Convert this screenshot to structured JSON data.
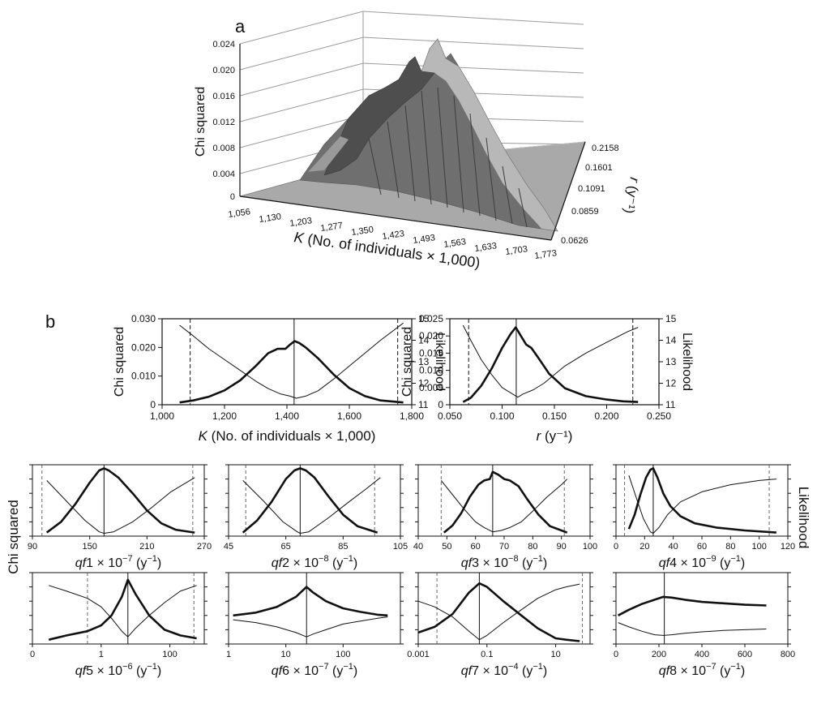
{
  "panel_a": {
    "label": "a",
    "zlabel": "Chi squared",
    "xlabel": "K (No. of individuals × 1,000)",
    "xlabel_italic": "K",
    "xlabel_rest": " (No. of individuals × 1,000)",
    "ylabel": "r (y⁻¹)",
    "ylabel_italic": "r",
    "ylabel_rest": " (y⁻¹)",
    "z_ticks": [
      "0.024",
      "0.020",
      "0.016",
      "0.012",
      "0.008",
      "0.004",
      "0"
    ],
    "x_ticks": [
      "1,056",
      "1,130",
      "1,203",
      "1,277",
      "1,350",
      "1,423",
      "1,493",
      "1,563",
      "1,633",
      "1,703",
      "1,773"
    ],
    "y_ticks": [
      "0.2158",
      "0.1601",
      "0.1091",
      "0.0859",
      "0.0626"
    ]
  },
  "panel_b": {
    "label": "b",
    "left_axis_label": "Chi squared",
    "right_axis_label": "Likelihood"
  },
  "chart_data": [
    {
      "id": "K",
      "type": "line",
      "xlabel_italic": "K",
      "xlabel_rest": " (No. of individuals × 1,000)",
      "xlabel": "K (No. of individuals × 1,000)",
      "ylabel": "Chi squared",
      "y2label": "Likelihood",
      "xlim": [
        1000,
        1800
      ],
      "ylim": [
        0,
        0.03
      ],
      "y2lim": [
        11,
        15
      ],
      "xticks": [
        "1,000",
        "1,200",
        "1,400",
        "1,600",
        "1,800"
      ],
      "xtick_values": [
        1000,
        1200,
        1400,
        1600,
        1800
      ],
      "yticks": [
        "0",
        "0.010",
        "0.020",
        "0.030"
      ],
      "ytick_values": [
        0,
        0.01,
        0.02,
        0.03
      ],
      "y2ticks": [
        "11",
        "12",
        "13",
        "14",
        "15"
      ],
      "y2tick_values": [
        11,
        12,
        13,
        14,
        15
      ],
      "series": [
        {
          "name": "Chi squared",
          "axis": "left",
          "x": [
            1056,
            1100,
            1150,
            1200,
            1250,
            1300,
            1340,
            1370,
            1395,
            1410,
            1425,
            1440,
            1460,
            1500,
            1550,
            1600,
            1650,
            1700,
            1773
          ],
          "y": [
            0.0008,
            0.0015,
            0.0028,
            0.005,
            0.0085,
            0.0135,
            0.018,
            0.0195,
            0.0195,
            0.021,
            0.0222,
            0.0215,
            0.02,
            0.0162,
            0.0105,
            0.0058,
            0.003,
            0.0015,
            0.0008
          ]
        },
        {
          "name": "Likelihood",
          "axis": "right",
          "x": [
            1056,
            1100,
            1150,
            1200,
            1250,
            1300,
            1340,
            1380,
            1410,
            1430,
            1460,
            1500,
            1550,
            1600,
            1650,
            1700,
            1773
          ],
          "y": [
            14.7,
            14.2,
            13.6,
            13.1,
            12.6,
            12.1,
            11.75,
            11.5,
            11.4,
            11.3,
            11.4,
            11.65,
            12.2,
            12.8,
            13.4,
            14.0,
            14.8
          ]
        }
      ],
      "lower_ci": 1090,
      "upper_ci": 1755,
      "best": 1423
    },
    {
      "id": "r",
      "type": "line",
      "xlabel_italic": "r",
      "xlabel_rest": " (y⁻¹)",
      "xlabel": "r (y⁻¹)",
      "ylabel": "Chi squared",
      "y2label": "Likelihood",
      "xlim": [
        0.05,
        0.25
      ],
      "ylim": [
        0,
        0.025
      ],
      "y2lim": [
        11,
        15
      ],
      "xticks": [
        "0.050",
        "0.100",
        "0.150",
        "0.200",
        "0.250"
      ],
      "xtick_values": [
        0.05,
        0.1,
        0.15,
        0.2,
        0.25
      ],
      "yticks": [
        "0",
        "0.005",
        "0.010",
        "0.015",
        "0.020",
        "0.025"
      ],
      "ytick_values": [
        0,
        0.005,
        0.01,
        0.015,
        0.02,
        0.025
      ],
      "y2ticks": [
        "11",
        "12",
        "13",
        "14",
        "15"
      ],
      "y2tick_values": [
        11,
        12,
        13,
        14,
        15
      ],
      "series": [
        {
          "name": "Chi squared",
          "axis": "left",
          "x": [
            0.0626,
            0.07,
            0.08,
            0.09,
            0.1,
            0.108,
            0.113,
            0.118,
            0.123,
            0.128,
            0.135,
            0.145,
            0.16,
            0.18,
            0.2,
            0.2158,
            0.23
          ],
          "y": [
            0.0008,
            0.002,
            0.0055,
            0.0105,
            0.0165,
            0.0205,
            0.0225,
            0.02,
            0.0175,
            0.0165,
            0.0135,
            0.009,
            0.0048,
            0.0025,
            0.0015,
            0.001,
            0.0008
          ]
        },
        {
          "name": "Likelihood",
          "axis": "right",
          "x": [
            0.0626,
            0.07,
            0.08,
            0.09,
            0.1,
            0.11,
            0.115,
            0.12,
            0.13,
            0.14,
            0.16,
            0.18,
            0.2,
            0.22,
            0.23
          ],
          "y": [
            14.7,
            14.0,
            13.1,
            12.4,
            11.8,
            11.5,
            11.35,
            11.5,
            11.7,
            12.0,
            12.8,
            13.4,
            13.9,
            14.4,
            14.6
          ]
        }
      ],
      "lower_ci": 0.068,
      "upper_ci": 0.225,
      "best": 0.1135
    },
    {
      "id": "qf1",
      "type": "line",
      "xscale": "linear",
      "xlabel_italic": "qf",
      "xlabel_num": "1",
      "xlabel_mult": " × 10",
      "xlabel_exp": "−7",
      "xlabel_unit": " (y",
      "xlabel_unit_exp": "−1",
      "xlabel_close": ")",
      "xlabel": "qf1 × 10⁻⁷ (y⁻¹)",
      "xlim": [
        90,
        270
      ],
      "xticks": [
        "90",
        "150",
        "210",
        "270"
      ],
      "xtick_values": [
        90,
        150,
        210,
        270
      ],
      "series": [
        {
          "name": "Chi squared",
          "x": [
            105,
            120,
            135,
            150,
            160,
            165,
            170,
            180,
            195,
            210,
            225,
            240,
            260
          ],
          "y": [
            0.05,
            0.2,
            0.45,
            0.75,
            0.92,
            0.95,
            0.92,
            0.82,
            0.6,
            0.36,
            0.18,
            0.09,
            0.05
          ]
        },
        {
          "name": "Likelihood",
          "x": [
            105,
            125,
            145,
            160,
            165,
            175,
            195,
            215,
            235,
            260
          ],
          "y": [
            0.78,
            0.5,
            0.22,
            0.06,
            0.04,
            0.06,
            0.2,
            0.4,
            0.62,
            0.82
          ]
        }
      ],
      "lower_ci": 100,
      "upper_ci": 258,
      "best": 165
    },
    {
      "id": "qf2",
      "type": "line",
      "xscale": "linear",
      "xlabel_italic": "qf",
      "xlabel_num": "2",
      "xlabel_mult": " × 10",
      "xlabel_exp": "−8",
      "xlabel_unit": " (y",
      "xlabel_unit_exp": "−1",
      "xlabel_close": ")",
      "xlabel": "qf2 × 10⁻⁸ (y⁻¹)",
      "xlim": [
        45,
        105
      ],
      "xticks": [
        "45",
        "65",
        "85",
        "105"
      ],
      "xtick_values": [
        45,
        65,
        85,
        105
      ],
      "series": [
        {
          "name": "Chi squared",
          "x": [
            50,
            55,
            60,
            65,
            68,
            70,
            72,
            75,
            80,
            85,
            90,
            97
          ],
          "y": [
            0.05,
            0.22,
            0.48,
            0.8,
            0.92,
            0.95,
            0.92,
            0.82,
            0.55,
            0.3,
            0.14,
            0.05
          ]
        },
        {
          "name": "Likelihood",
          "x": [
            50,
            57,
            64,
            69,
            70,
            73,
            80,
            87,
            93,
            98
          ],
          "y": [
            0.78,
            0.5,
            0.2,
            0.06,
            0.04,
            0.06,
            0.26,
            0.48,
            0.66,
            0.82
          ]
        }
      ],
      "lower_ci": 51,
      "upper_ci": 96,
      "best": 70
    },
    {
      "id": "qf3",
      "type": "line",
      "xscale": "linear",
      "xlabel_italic": "qf",
      "xlabel_num": "3",
      "xlabel_mult": " × 10",
      "xlabel_exp": "−8",
      "xlabel_unit": " (y",
      "xlabel_unit_exp": "−1",
      "xlabel_close": ")",
      "xlabel": "qf3 × 10⁻⁸ (y⁻¹)",
      "xlim": [
        40,
        100
      ],
      "xticks": [
        "40",
        "50",
        "60",
        "70",
        "80",
        "90",
        "100"
      ],
      "xtick_values": [
        40,
        50,
        60,
        70,
        80,
        90,
        100
      ],
      "series": [
        {
          "name": "Chi squared",
          "x": [
            49,
            52,
            55,
            58,
            61,
            63,
            65,
            66,
            68,
            70,
            72,
            75,
            78,
            82,
            86,
            92
          ],
          "y": [
            0.05,
            0.15,
            0.32,
            0.55,
            0.72,
            0.78,
            0.8,
            0.9,
            0.86,
            0.8,
            0.78,
            0.7,
            0.52,
            0.3,
            0.14,
            0.05
          ]
        },
        {
          "name": "Likelihood",
          "x": [
            48,
            52,
            56,
            60,
            63,
            66,
            69,
            72,
            76,
            80,
            85,
            90,
            92
          ],
          "y": [
            0.78,
            0.58,
            0.38,
            0.2,
            0.12,
            0.06,
            0.08,
            0.12,
            0.2,
            0.35,
            0.55,
            0.72,
            0.8
          ]
        }
      ],
      "lower_ci": 48,
      "upper_ci": 91,
      "best": 66
    },
    {
      "id": "qf4",
      "type": "line",
      "xscale": "linear",
      "xlabel_italic": "qf",
      "xlabel_num": "4",
      "xlabel_mult": " × 10",
      "xlabel_exp": "−9",
      "xlabel_unit": " (y",
      "xlabel_unit_exp": "−1",
      "xlabel_close": ")",
      "xlabel": "qf4 × 10⁻⁹ (y⁻¹)",
      "xlim": [
        0,
        120
      ],
      "xticks": [
        "0",
        "20",
        "40",
        "60",
        "80",
        "100",
        "120"
      ],
      "xtick_values": [
        0,
        20,
        40,
        60,
        80,
        100,
        120
      ],
      "series": [
        {
          "name": "Chi squared",
          "x": [
            9,
            13,
            17,
            21,
            24,
            26,
            29,
            33,
            38,
            45,
            55,
            70,
            90,
            112
          ],
          "y": [
            0.1,
            0.3,
            0.58,
            0.82,
            0.93,
            0.95,
            0.82,
            0.6,
            0.42,
            0.28,
            0.18,
            0.12,
            0.08,
            0.05
          ]
        },
        {
          "name": "Likelihood",
          "x": [
            9,
            14,
            19,
            24,
            26,
            30,
            36,
            45,
            60,
            80,
            100,
            112
          ],
          "y": [
            0.85,
            0.55,
            0.25,
            0.06,
            0.04,
            0.12,
            0.3,
            0.48,
            0.62,
            0.72,
            0.78,
            0.8
          ]
        }
      ],
      "lower_ci": 6,
      "upper_ci": 107,
      "best": 26
    },
    {
      "id": "qf5",
      "type": "line",
      "xscale": "log",
      "xlabel_italic": "qf",
      "xlabel_num": "5",
      "xlabel_mult": " × 10",
      "xlabel_exp": "−6",
      "xlabel_unit": " (y",
      "xlabel_unit_exp": "−1",
      "xlabel_close": ")",
      "xlabel": "qf5 × 10⁻⁶ (y⁻¹)",
      "xlim": [
        0.01,
        1000
      ],
      "xticks": [
        "0",
        "1",
        "100"
      ],
      "xtick_values": [
        0.01,
        1,
        100
      ],
      "series": [
        {
          "name": "Chi squared",
          "x": [
            0.03,
            0.1,
            0.4,
            1,
            2,
            4,
            6,
            10,
            25,
            70,
            200,
            600
          ],
          "y": [
            0.06,
            0.12,
            0.18,
            0.26,
            0.4,
            0.66,
            0.9,
            0.7,
            0.4,
            0.2,
            0.12,
            0.08
          ]
        },
        {
          "name": "Likelihood",
          "x": [
            0.03,
            0.1,
            0.4,
            1,
            2,
            4,
            6,
            10,
            25,
            70,
            200,
            600
          ],
          "y": [
            0.82,
            0.74,
            0.64,
            0.52,
            0.36,
            0.18,
            0.1,
            0.22,
            0.4,
            0.58,
            0.74,
            0.82
          ]
        }
      ],
      "lower_ci": 0.4,
      "upper_ci": 500,
      "best": 6
    },
    {
      "id": "qf6",
      "type": "line",
      "xscale": "log",
      "xlabel_italic": "qf",
      "xlabel_num": "6",
      "xlabel_mult": " × 10",
      "xlabel_exp": "−7",
      "xlabel_unit": " (y",
      "xlabel_unit_exp": "−1",
      "xlabel_close": ")",
      "xlabel": "qf6 × 10⁻⁷ (y⁻¹)",
      "xlim": [
        1,
        1000
      ],
      "xticks": [
        "1",
        "10",
        "100"
      ],
      "xtick_values": [
        1,
        10,
        100
      ],
      "series": [
        {
          "name": "Chi squared",
          "x": [
            1.2,
            3,
            7,
            15,
            23,
            30,
            50,
            100,
            200,
            400,
            600
          ],
          "y": [
            0.4,
            0.44,
            0.52,
            0.66,
            0.8,
            0.72,
            0.6,
            0.5,
            0.45,
            0.41,
            0.4
          ]
        },
        {
          "name": "Likelihood",
          "x": [
            1.2,
            3,
            7,
            15,
            23,
            30,
            50,
            100,
            200,
            400,
            600
          ],
          "y": [
            0.34,
            0.3,
            0.24,
            0.16,
            0.1,
            0.14,
            0.2,
            0.28,
            0.32,
            0.36,
            0.38
          ]
        }
      ],
      "best": 23
    },
    {
      "id": "qf7",
      "type": "line",
      "xscale": "log",
      "xlabel_italic": "qf",
      "xlabel_num": "7",
      "xlabel_mult": " × 10",
      "xlabel_exp": "−4",
      "xlabel_unit": " (y",
      "xlabel_unit_exp": "−1",
      "xlabel_close": ")",
      "xlabel": "qf7 × 10⁻⁴ (y⁻¹)",
      "xlim": [
        0.001,
        100
      ],
      "xticks": [
        "0.001",
        "0.1",
        "10"
      ],
      "xtick_values": [
        0.001,
        0.1,
        10
      ],
      "series": [
        {
          "name": "Chi squared",
          "x": [
            0.001,
            0.003,
            0.01,
            0.03,
            0.06,
            0.1,
            0.3,
            1,
            3,
            10,
            20,
            50
          ],
          "y": [
            0.16,
            0.24,
            0.42,
            0.72,
            0.85,
            0.8,
            0.6,
            0.4,
            0.22,
            0.08,
            0.06,
            0.04
          ]
        },
        {
          "name": "Likelihood",
          "x": [
            0.001,
            0.003,
            0.01,
            0.03,
            0.06,
            0.1,
            0.3,
            1,
            3,
            10,
            20,
            50
          ],
          "y": [
            0.6,
            0.52,
            0.38,
            0.18,
            0.06,
            0.12,
            0.3,
            0.48,
            0.64,
            0.76,
            0.8,
            0.84
          ]
        }
      ],
      "lower_ci": 0.0035,
      "upper_ci": 60,
      "best": 0.06
    },
    {
      "id": "qf8",
      "type": "line",
      "xscale": "linear",
      "xlabel_italic": "qf",
      "xlabel_num": "8",
      "xlabel_mult": " × 10",
      "xlabel_exp": "−7",
      "xlabel_unit": " (y",
      "xlabel_unit_exp": "−1",
      "xlabel_close": ")",
      "xlabel": "qf8 × 10⁻⁷ (y⁻¹)",
      "xlim": [
        0,
        800
      ],
      "xticks": [
        "0",
        "200",
        "400",
        "600",
        "800"
      ],
      "xtick_values": [
        0,
        200,
        400,
        600,
        800
      ],
      "series": [
        {
          "name": "Chi squared",
          "x": [
            10,
            60,
            120,
            180,
            220,
            260,
            320,
            400,
            500,
            600,
            700
          ],
          "y": [
            0.4,
            0.48,
            0.56,
            0.62,
            0.66,
            0.65,
            0.62,
            0.59,
            0.57,
            0.55,
            0.54
          ]
        },
        {
          "name": "Likelihood",
          "x": [
            10,
            60,
            120,
            180,
            220,
            260,
            320,
            400,
            500,
            600,
            700
          ],
          "y": [
            0.3,
            0.24,
            0.18,
            0.13,
            0.12,
            0.13,
            0.15,
            0.17,
            0.19,
            0.2,
            0.21
          ]
        }
      ],
      "best": 225
    }
  ],
  "colors": {
    "ink": "#111111",
    "surface_base": "#a8a8a8",
    "surface_peak": "#444444"
  }
}
